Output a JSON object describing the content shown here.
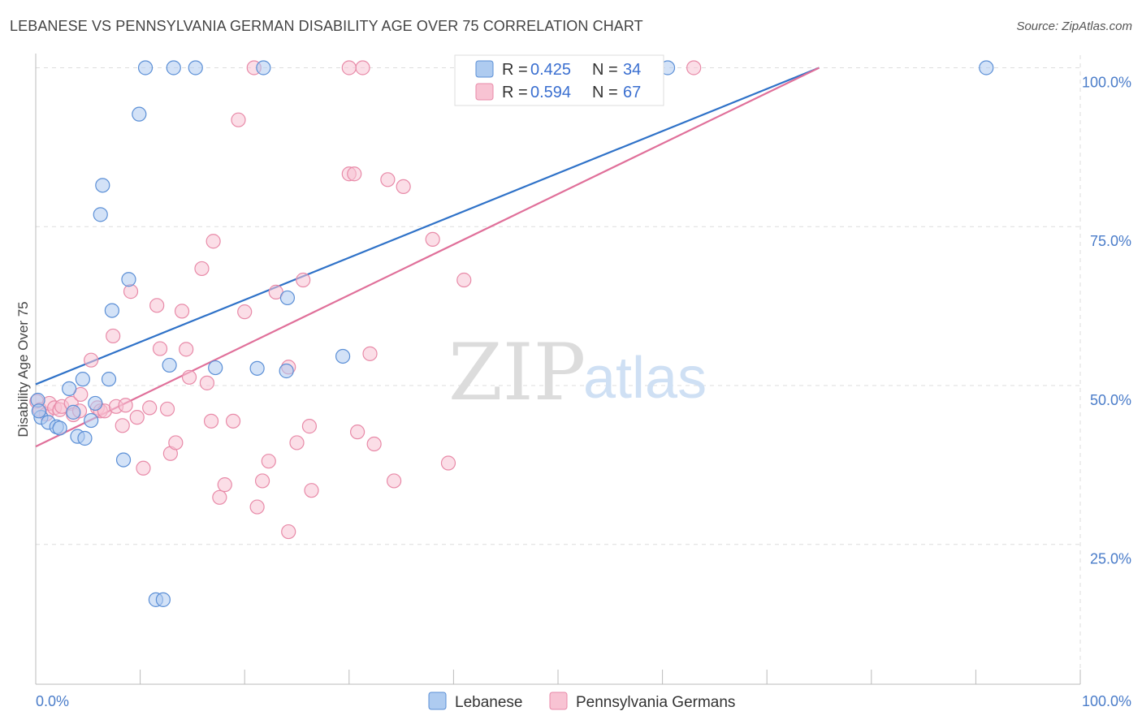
{
  "title": "LEBANESE VS PENNSYLVANIA GERMAN DISABILITY AGE OVER 75 CORRELATION CHART",
  "source": "Source: ZipAtlas.com",
  "watermark": {
    "zip": "ZIP",
    "atlas": "atlas"
  },
  "colors": {
    "lebanese_fill": "#aecbf0",
    "lebanese_stroke": "#5b8fd6",
    "lebanese_line": "#2f72c8",
    "pg_fill": "#f8c3d3",
    "pg_stroke": "#e88aa8",
    "pg_line": "#e0709a",
    "grid": "#dddddd",
    "tick_text": "#4a7cc9"
  },
  "legend": {
    "rows": [
      {
        "r_label": "R = ",
        "r_value": "0.425",
        "n_label": "N = ",
        "n_value": "34"
      },
      {
        "r_label": "R = ",
        "r_value": "0.594",
        "n_label": "N = ",
        "n_value": "67"
      }
    ]
  },
  "bottom_legend": [
    "Lebanese",
    "Pennsylvania Germans"
  ],
  "chart_data": {
    "type": "scatter",
    "xlabel": "",
    "ylabel": "Disability Age Over 75",
    "xlim": [
      0,
      100
    ],
    "ylim": [
      3,
      103
    ],
    "x_tick_labels": [
      "0.0%",
      "100.0%"
    ],
    "y_ticks": [
      25,
      50,
      75,
      100
    ],
    "y_tick_labels": [
      "25.0%",
      "50.0%",
      "75.0%",
      "100.0%"
    ],
    "grid": true,
    "legend_position": "top-center",
    "series": [
      {
        "name": "Lebanese",
        "points": [
          [
            0.2,
            47.7
          ],
          [
            0.5,
            45.0
          ],
          [
            1.2,
            44.2
          ],
          [
            2.0,
            43.5
          ],
          [
            2.3,
            43.3
          ],
          [
            3.2,
            49.5
          ],
          [
            3.6,
            45.8
          ],
          [
            4.0,
            42.0
          ],
          [
            4.5,
            51.0
          ],
          [
            4.7,
            41.7
          ],
          [
            5.3,
            44.5
          ],
          [
            5.7,
            47.2
          ],
          [
            6.2,
            76.9
          ],
          [
            6.4,
            81.5
          ],
          [
            7.0,
            51.0
          ],
          [
            7.3,
            61.8
          ],
          [
            8.4,
            38.3
          ],
          [
            8.9,
            66.7
          ],
          [
            9.9,
            92.7
          ],
          [
            10.5,
            100.0
          ],
          [
            11.5,
            16.3
          ],
          [
            12.2,
            16.3
          ],
          [
            12.8,
            53.2
          ],
          [
            13.2,
            100.0
          ],
          [
            15.3,
            100.0
          ],
          [
            17.2,
            52.8
          ],
          [
            21.2,
            52.7
          ],
          [
            21.8,
            100.0
          ],
          [
            24.0,
            52.3
          ],
          [
            24.1,
            63.8
          ],
          [
            29.4,
            54.6
          ],
          [
            60.5,
            100.0
          ],
          [
            91.0,
            100.0
          ],
          [
            0.3,
            46.0
          ]
        ]
      },
      {
        "name": "Pennsylvania Germans",
        "points": [
          [
            0.1,
            47.5
          ],
          [
            0.4,
            46.2
          ],
          [
            1.0,
            45.5
          ],
          [
            1.3,
            47.2
          ],
          [
            1.8,
            46.5
          ],
          [
            2.3,
            46.2
          ],
          [
            2.5,
            46.7
          ],
          [
            3.4,
            47.2
          ],
          [
            3.6,
            45.4
          ],
          [
            4.2,
            46.0
          ],
          [
            4.3,
            48.6
          ],
          [
            5.3,
            54.0
          ],
          [
            5.9,
            46.5
          ],
          [
            6.2,
            46.0
          ],
          [
            6.6,
            46.0
          ],
          [
            7.4,
            57.8
          ],
          [
            7.7,
            46.7
          ],
          [
            8.3,
            43.7
          ],
          [
            8.6,
            46.9
          ],
          [
            9.1,
            64.8
          ],
          [
            9.7,
            45.0
          ],
          [
            10.3,
            37.0
          ],
          [
            10.9,
            46.5
          ],
          [
            11.6,
            62.6
          ],
          [
            11.9,
            55.8
          ],
          [
            12.6,
            46.3
          ],
          [
            12.9,
            39.3
          ],
          [
            13.4,
            41.0
          ],
          [
            14.0,
            61.7
          ],
          [
            14.4,
            55.7
          ],
          [
            14.7,
            51.3
          ],
          [
            16.4,
            50.4
          ],
          [
            16.8,
            44.4
          ],
          [
            17.0,
            72.7
          ],
          [
            15.9,
            68.4
          ],
          [
            17.6,
            32.4
          ],
          [
            18.1,
            34.4
          ],
          [
            18.9,
            44.4
          ],
          [
            19.4,
            91.8
          ],
          [
            20.0,
            61.6
          ],
          [
            20.9,
            100.0
          ],
          [
            21.2,
            30.9
          ],
          [
            21.7,
            35.0
          ],
          [
            22.3,
            38.1
          ],
          [
            23.0,
            64.7
          ],
          [
            24.2,
            52.9
          ],
          [
            24.2,
            27.0
          ],
          [
            25.0,
            41.0
          ],
          [
            25.6,
            66.6
          ],
          [
            26.2,
            43.6
          ],
          [
            26.4,
            33.5
          ],
          [
            30.0,
            83.3
          ],
          [
            30.5,
            83.3
          ],
          [
            30.8,
            42.7
          ],
          [
            31.3,
            100.0
          ],
          [
            32.0,
            55.0
          ],
          [
            32.4,
            40.8
          ],
          [
            33.7,
            82.4
          ],
          [
            34.3,
            35.0
          ],
          [
            35.2,
            81.3
          ],
          [
            38.0,
            73.0
          ],
          [
            39.5,
            37.8
          ],
          [
            41.0,
            66.6
          ],
          [
            55.0,
            100.0
          ],
          [
            56.2,
            100.0
          ],
          [
            63.0,
            100.0
          ],
          [
            30.0,
            100.0
          ]
        ]
      }
    ],
    "trend_lines": [
      {
        "series": "Lebanese",
        "from": [
          0,
          50.2
        ],
        "to": [
          75,
          100
        ]
      },
      {
        "series": "Pennsylvania Germans",
        "from": [
          0,
          40.4
        ],
        "to": [
          75,
          100
        ]
      }
    ]
  }
}
